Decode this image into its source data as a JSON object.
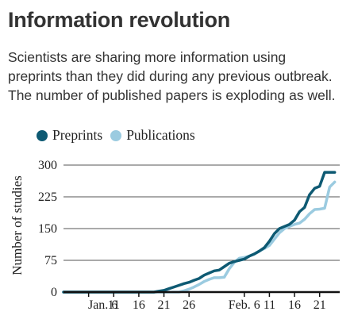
{
  "header": {
    "title": "Information revolution",
    "subtitle_lines": [
      "Scientists are sharing more information using",
      "preprints than they did during any previous outbreak.",
      "The number of published papers is exploding as well."
    ]
  },
  "chart_data": {
    "type": "line",
    "ylabel": "Number of studies",
    "xlabel": "",
    "ylim": [
      0,
      300
    ],
    "yticks": [
      0,
      75,
      150,
      225,
      300
    ],
    "xticks": [
      {
        "day": 6,
        "label": "Jan. 6"
      },
      {
        "day": 11,
        "label": "11"
      },
      {
        "day": 16,
        "label": "16"
      },
      {
        "day": 21,
        "label": "21"
      },
      {
        "day": 26,
        "label": "26"
      },
      {
        "day": 37,
        "label": "Feb. 6"
      },
      {
        "day": 42,
        "label": "11"
      },
      {
        "day": 47,
        "label": "16"
      },
      {
        "day": 52,
        "label": "21"
      }
    ],
    "legend_position": "top-left",
    "grid": "horizontal",
    "series": [
      {
        "name": "Preprints",
        "color": "#0e5a73",
        "x": [
          1,
          19,
          20,
          21,
          22,
          23,
          24,
          25,
          26,
          27,
          28,
          29,
          30,
          31,
          32,
          33,
          34,
          35,
          36,
          37,
          38,
          39,
          40,
          41,
          42,
          43,
          44,
          45,
          46,
          47,
          48,
          49,
          50,
          51,
          52,
          53,
          54,
          55
        ],
        "y": [
          0,
          0,
          2,
          4,
          8,
          12,
          16,
          20,
          23,
          28,
          32,
          40,
          45,
          50,
          52,
          60,
          68,
          72,
          75,
          78,
          85,
          90,
          97,
          105,
          120,
          138,
          150,
          155,
          160,
          170,
          190,
          200,
          230,
          245,
          250,
          283,
          283,
          283
        ]
      },
      {
        "name": "Publications",
        "color": "#9bcbe0",
        "x": [
          1,
          24,
          25,
          26,
          27,
          28,
          29,
          30,
          31,
          32,
          33,
          34,
          35,
          36,
          37,
          38,
          39,
          40,
          41,
          42,
          43,
          44,
          45,
          46,
          47,
          48,
          49,
          50,
          51,
          52,
          53,
          54,
          55
        ],
        "y": [
          0,
          0,
          3,
          7,
          12,
          18,
          25,
          30,
          34,
          34,
          35,
          55,
          70,
          80,
          82,
          85,
          90,
          97,
          103,
          110,
          125,
          140,
          150,
          155,
          160,
          163,
          172,
          185,
          195,
          196,
          198,
          248,
          260
        ]
      }
    ]
  }
}
